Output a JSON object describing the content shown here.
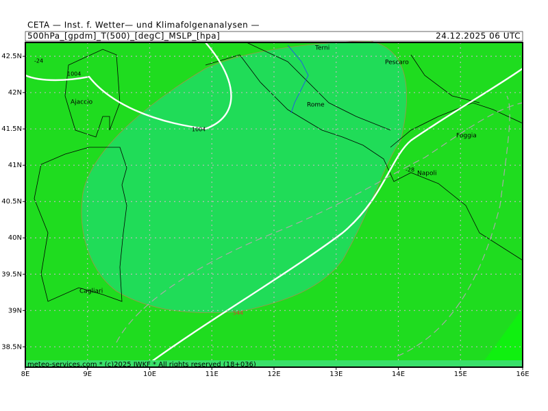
{
  "header": {
    "title": "CETA — Inst. f. Wetter— und Klimafolgenanalysen —",
    "fields": "500hPa_[gpdm]_T(500)_[degC]_MSLP_[hpa]",
    "datetime": "24.12.2025 06 UTC"
  },
  "map": {
    "xlim": [
      8,
      16
    ],
    "ylim": [
      38.22,
      42.69
    ],
    "xticks": [
      {
        "value": 8,
        "label": "8E"
      },
      {
        "value": 9,
        "label": "9E"
      },
      {
        "value": 10,
        "label": "10E"
      },
      {
        "value": 11,
        "label": "11E"
      },
      {
        "value": 12,
        "label": "12E"
      },
      {
        "value": 13,
        "label": "13E"
      },
      {
        "value": 14,
        "label": "14E"
      },
      {
        "value": 15,
        "label": "15E"
      },
      {
        "value": 16,
        "label": "16E"
      }
    ],
    "yticks": [
      {
        "value": 38.5,
        "label": "38.5N"
      },
      {
        "value": 39,
        "label": "39N"
      },
      {
        "value": 39.5,
        "label": "39.5N"
      },
      {
        "value": 40,
        "label": "40N"
      },
      {
        "value": 40.5,
        "label": "40.5N"
      },
      {
        "value": 41,
        "label": "41N"
      },
      {
        "value": 41.5,
        "label": "41.5N"
      },
      {
        "value": 42,
        "label": "42N"
      },
      {
        "value": 42.5,
        "label": "42.5N"
      }
    ],
    "grid": true
  },
  "cities": [
    "Terni",
    "Pescaro",
    "Ajaccio",
    "Rome",
    "Foggia",
    "Napoli",
    "Cagliari"
  ],
  "contour_labels": [
    "-24",
    "1004",
    "1004",
    "-28",
    "544"
  ],
  "footer": "meteo-services.com * (c)2025 IWKF * All rights reserved (18+036)"
}
